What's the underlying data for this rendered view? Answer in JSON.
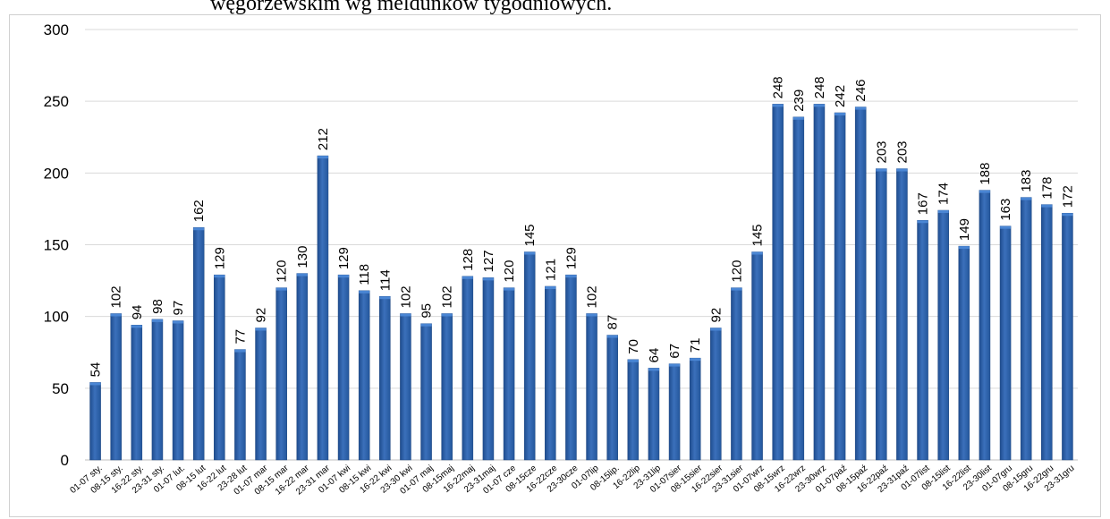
{
  "title_fragment": "węgorzewskim wg meldunków tygodniowych.",
  "chart_data": {
    "type": "bar",
    "title": "węgorzewskim wg meldunków tygodniowych.",
    "xlabel": "",
    "ylabel": "",
    "ylim": [
      0,
      300
    ],
    "yticks": [
      0,
      50,
      100,
      150,
      200,
      250,
      300
    ],
    "grid": true,
    "legend": "none",
    "bar_color": "#2e5fa3",
    "bar_highlight": "#4a86d4",
    "categories": [
      "01-07 sty.",
      "08-15 sty.",
      "16-22 sty.",
      "23-31 sty.",
      "01-07 lut.",
      "08-15 lut",
      "16-22 lut",
      "23-28 lut",
      "01-07 mar",
      "08-15 mar",
      "16-22 mar",
      "23-31 mar",
      "01-07 kwi",
      "08-15 kwi",
      "16-22 kwi",
      "23-30 kwi",
      "01-07 maj",
      "08-15maj",
      "16-22maj",
      "23-31maj",
      "01-07 cze",
      "08-15cze",
      "16-22cze",
      "23-30cze",
      "01-07lip",
      "08-15lip.",
      "16-22lip",
      "23-31lip",
      "01-07sier",
      "08-15sier",
      "16-22sier",
      "23-31sier",
      "01-07wrz",
      "08-15wrz",
      "16-22wrz",
      "23-30wrz",
      "01-07paź",
      "08-15paź",
      "16-22paź",
      "23-31paź",
      "01-07list",
      "08-15list",
      "16-22list",
      "23-30list",
      "01-07gru",
      "08-15gru",
      "16-22gru",
      "23-31gru"
    ],
    "values": [
      54,
      102,
      94,
      98,
      97,
      162,
      129,
      77,
      92,
      120,
      130,
      212,
      129,
      118,
      114,
      102,
      95,
      102,
      128,
      127,
      120,
      145,
      121,
      129,
      102,
      87,
      70,
      64,
      67,
      71,
      92,
      120,
      145,
      248,
      239,
      248,
      242,
      246,
      203,
      203,
      167,
      174,
      149,
      188,
      163,
      183,
      178,
      172
    ]
  }
}
